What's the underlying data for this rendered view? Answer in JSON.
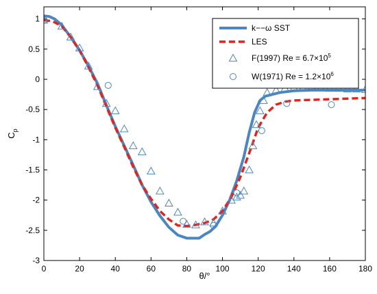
{
  "chart_data": {
    "type": "line",
    "title": "",
    "xlabel": "θ/°",
    "ylabel": "Cp",
    "ylabel_main": "C",
    "ylabel_sub": "p",
    "xlim": [
      0,
      180
    ],
    "ylim": [
      -3,
      1.2
    ],
    "xticks": [
      "0",
      "20",
      "40",
      "60",
      "80",
      "100",
      "120",
      "140",
      "160",
      "180"
    ],
    "yticks": [
      "1",
      "0.5",
      "0",
      "-0.5",
      "-1",
      "-1.5",
      "-2",
      "-2.5",
      "-3"
    ],
    "grid": false,
    "legend_position": "top-right",
    "series": [
      {
        "name": "k−−ω SST",
        "style": "solid",
        "color": "#4a86c4",
        "x": [
          0,
          3,
          6,
          10,
          15,
          20,
          25,
          30,
          35,
          40,
          45,
          50,
          55,
          60,
          65,
          70,
          75,
          80,
          83,
          87,
          90,
          93,
          96,
          100,
          104,
          108,
          112,
          115,
          118,
          121,
          124,
          128,
          132,
          140,
          150,
          160,
          170,
          180
        ],
        "y": [
          1.05,
          1.04,
          1.0,
          0.9,
          0.7,
          0.48,
          0.22,
          -0.07,
          -0.43,
          -0.78,
          -1.1,
          -1.42,
          -1.75,
          -2.03,
          -2.26,
          -2.45,
          -2.58,
          -2.63,
          -2.63,
          -2.63,
          -2.57,
          -2.52,
          -2.44,
          -2.25,
          -2.0,
          -1.68,
          -1.28,
          -0.88,
          -0.55,
          -0.35,
          -0.28,
          -0.25,
          -0.22,
          -0.19,
          -0.18,
          -0.18,
          -0.18,
          -0.18
        ]
      },
      {
        "name": "LES",
        "style": "dashed",
        "color": "#e8211a",
        "x": [
          0,
          5,
          10,
          15,
          20,
          25,
          30,
          35,
          40,
          45,
          50,
          55,
          60,
          65,
          70,
          75,
          80,
          85,
          90,
          95,
          100,
          105,
          110,
          115,
          120,
          125,
          130,
          135,
          140,
          150,
          160,
          170,
          180
        ],
        "y": [
          0.98,
          0.96,
          0.88,
          0.7,
          0.48,
          0.2,
          -0.1,
          -0.45,
          -0.8,
          -1.12,
          -1.45,
          -1.75,
          -1.98,
          -2.18,
          -2.32,
          -2.42,
          -2.43,
          -2.41,
          -2.38,
          -2.32,
          -2.18,
          -1.95,
          -1.62,
          -1.22,
          -0.8,
          -0.55,
          -0.42,
          -0.37,
          -0.35,
          -0.34,
          -0.33,
          -0.32,
          -0.31
        ]
      },
      {
        "name": "F(1997) Re = 6.7×10",
        "name_sup": "5",
        "style": "triangle",
        "color": "#4a86c4",
        "x": [
          0,
          10,
          15,
          20,
          25,
          30,
          35,
          40,
          45,
          50,
          55,
          60,
          65,
          70,
          75,
          80,
          85,
          90,
          95,
          100,
          105,
          108,
          110,
          112,
          115,
          117,
          119,
          121,
          123,
          125,
          130,
          135,
          140,
          145,
          150,
          155,
          160,
          165,
          170,
          175,
          180
        ],
        "y": [
          0.98,
          0.88,
          0.7,
          0.52,
          0.22,
          -0.12,
          -0.4,
          -0.52,
          -0.82,
          -1.1,
          -1.2,
          -1.52,
          -1.85,
          -2.05,
          -2.2,
          -2.4,
          -2.41,
          -2.36,
          -2.38,
          -2.18,
          -2.0,
          -1.95,
          -1.92,
          -1.85,
          -1.5,
          -1.1,
          -0.75,
          -0.52,
          -0.35,
          -0.22,
          -0.18,
          -0.15,
          -0.14,
          -0.14,
          -0.13,
          -0.14,
          -0.15,
          -0.15,
          -0.16,
          -0.16,
          -0.17
        ]
      },
      {
        "name": "W(1971) Re = 1.2×10",
        "name_sup": "6",
        "style": "circle",
        "color": "#4a86c4",
        "x": [
          0,
          36,
          78,
          95,
          108,
          122,
          136,
          161
        ],
        "y": [
          0.98,
          -0.1,
          -2.35,
          -2.42,
          -1.88,
          -0.85,
          -0.4,
          -0.42
        ]
      }
    ]
  }
}
